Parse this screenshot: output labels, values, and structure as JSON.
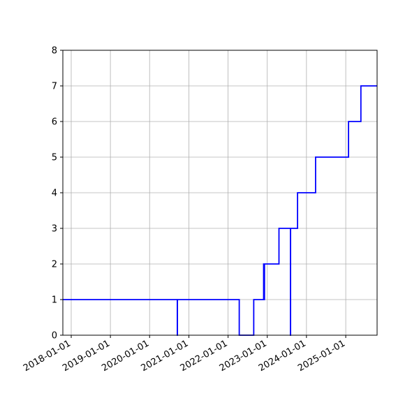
{
  "chart_data": {
    "type": "line",
    "step": "post",
    "title": "",
    "xlabel": "",
    "ylabel": "",
    "xlim": [
      "2017-10-15",
      "2025-10-20"
    ],
    "ylim": [
      0,
      8
    ],
    "grid": true,
    "line_color": "#0000ff",
    "x_ticks": [
      "2018-01-01",
      "2019-01-01",
      "2020-01-01",
      "2021-01-01",
      "2022-01-01",
      "2023-01-01",
      "2024-01-01",
      "2025-01-01"
    ],
    "y_ticks": [
      0,
      1,
      2,
      3,
      4,
      5,
      6,
      7,
      8
    ],
    "series": [
      {
        "points": [
          [
            "2017-10-15",
            1
          ],
          [
            "2020-09-15",
            0
          ],
          [
            "2020-09-16",
            1
          ],
          [
            "2022-04-15",
            0
          ],
          [
            "2022-08-28",
            1
          ],
          [
            "2022-11-28",
            2
          ],
          [
            "2022-12-02",
            1
          ],
          [
            "2022-12-06",
            2
          ],
          [
            "2023-04-20",
            3
          ],
          [
            "2023-08-05",
            0
          ],
          [
            "2023-08-06",
            3
          ],
          [
            "2023-10-10",
            4
          ],
          [
            "2024-03-26",
            5
          ],
          [
            "2025-01-27",
            6
          ],
          [
            "2025-05-22",
            7
          ],
          [
            "2025-10-20",
            7
          ]
        ]
      }
    ]
  }
}
